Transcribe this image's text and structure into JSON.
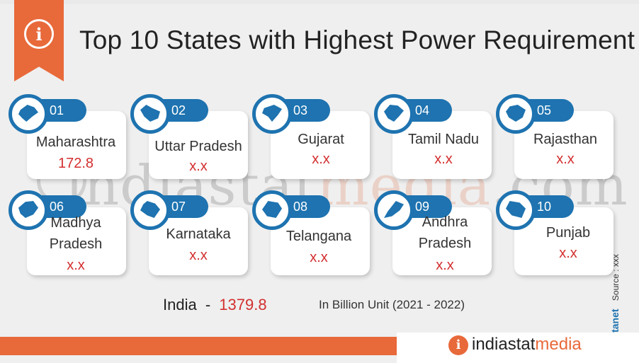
{
  "title": "Top 10 States with Highest Power Requirement",
  "info_glyph": "i",
  "accent_color": "#e8693a",
  "badge_color": "#1e73b0",
  "value_color": "#d32f2f",
  "states": [
    {
      "num": "01",
      "name": "Maharashtra",
      "value": "172.8",
      "icon": "maharashtra-map-icon"
    },
    {
      "num": "02",
      "name": "Uttar Pradesh",
      "value": "x.x",
      "icon": "uttar-pradesh-map-icon"
    },
    {
      "num": "03",
      "name": "Gujarat",
      "value": "x.x",
      "icon": "gujarat-map-icon"
    },
    {
      "num": "04",
      "name": "Tamil Nadu",
      "value": "x.x",
      "icon": "tamil-nadu-map-icon"
    },
    {
      "num": "05",
      "name": "Rajasthan",
      "value": "x.x",
      "icon": "rajasthan-map-icon"
    },
    {
      "num": "06",
      "name_line1": "Madhya",
      "name_line2": "Pradesh",
      "value": "x.x",
      "icon": "madhya-pradesh-map-icon"
    },
    {
      "num": "07",
      "name": "Karnataka",
      "value": "x.x",
      "icon": "karnataka-map-icon"
    },
    {
      "num": "08",
      "name": "Telangana",
      "value": "x.x",
      "icon": "telangana-map-icon"
    },
    {
      "num": "09",
      "name_line1": "Andhra",
      "name_line2": "Pradesh",
      "value": "x.x",
      "icon": "andhra-pradesh-map-icon"
    },
    {
      "num": "10",
      "name": "Punjab",
      "value": "x.x",
      "icon": "punjab-map-icon"
    }
  ],
  "india": {
    "label": "India",
    "separator": "-",
    "value": "1379.8"
  },
  "unit": "In Billion Unit (2021 - 2022)",
  "watermark": {
    "part1": "indiastat",
    "part2": "media",
    "part3": ".com"
  },
  "side": {
    "copyright": "©",
    "brand": "Datanet",
    "source": "Source : xxx"
  },
  "logo": {
    "glyph": "i",
    "part1": "indiastat",
    "part2": "media"
  }
}
